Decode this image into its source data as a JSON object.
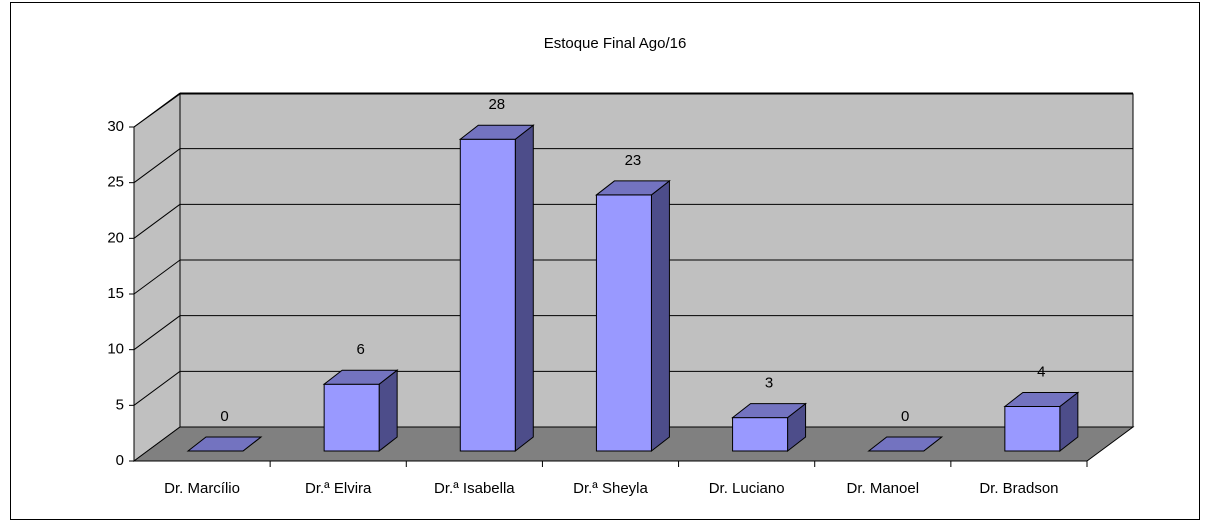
{
  "chart_data": {
    "type": "bar",
    "title": "Estoque Final Ago/16",
    "categories": [
      "Dr. Marcílio",
      "Dr.ª Elvira",
      "Dr.ª Isabella",
      "Dr.ª Sheyla",
      "Dr. Luciano",
      "Dr. Manoel",
      "Dr. Bradson"
    ],
    "values": [
      0,
      6,
      28,
      23,
      3,
      0,
      4
    ],
    "color": "#9999ff",
    "ylim": [
      0,
      30
    ],
    "yticks": [
      0,
      5,
      10,
      15,
      20,
      25,
      30
    ],
    "grid": true
  }
}
